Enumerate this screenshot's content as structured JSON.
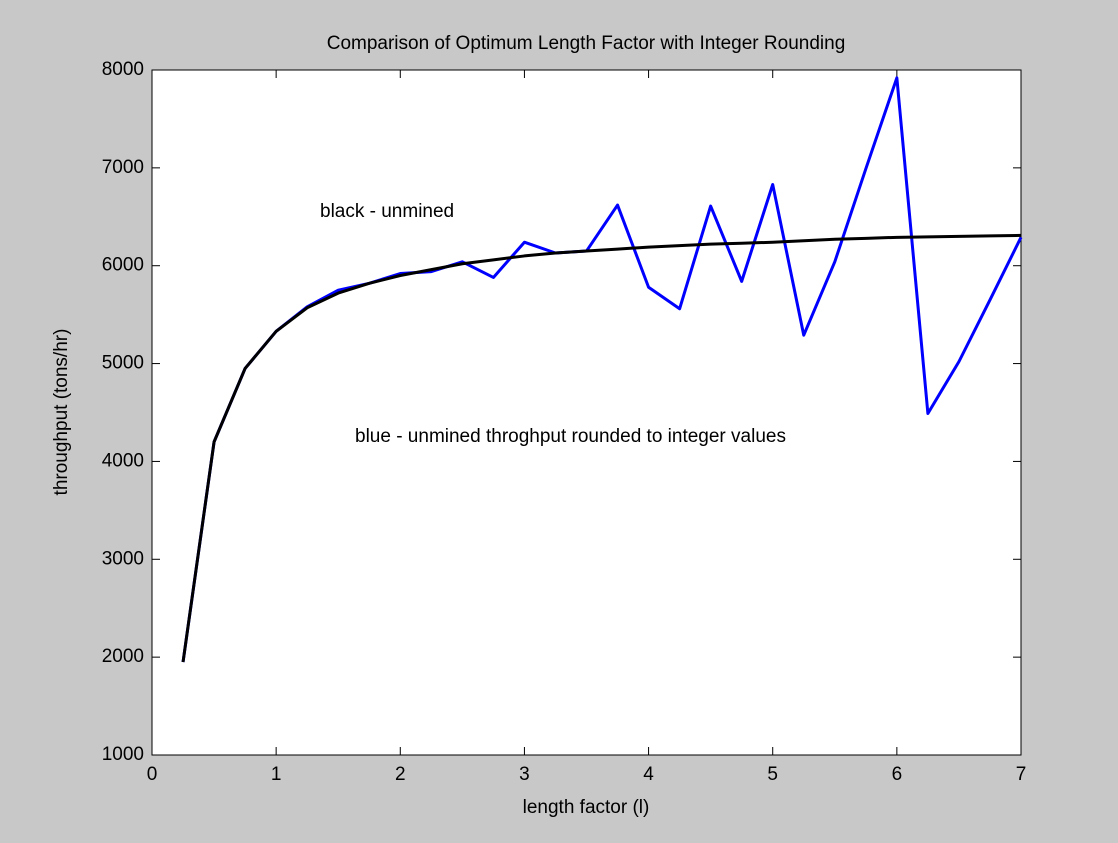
{
  "chart_data": {
    "type": "line",
    "title": "Comparison of Optimum Length Factor with Integer Rounding",
    "xlabel": "length factor (l)",
    "ylabel": "throughput (tons/hr)",
    "annotations": [
      "black - unmined",
      "blue - unmined throghput rounded to integer values"
    ],
    "x": [
      0.25,
      0.5,
      0.75,
      1,
      1.25,
      1.5,
      1.75,
      2,
      2.25,
      2.5,
      2.75,
      3,
      3.25,
      3.5,
      3.75,
      4,
      4.25,
      4.5,
      4.75,
      5,
      5.25,
      5.5,
      5.75,
      6,
      6.25,
      6.5,
      6.75,
      7
    ],
    "series": [
      {
        "name": "blue",
        "color": "#0000ff",
        "values": [
          1950,
          4200,
          4950,
          5330,
          5580,
          5750,
          5820,
          5920,
          5940,
          6040,
          5880,
          6240,
          6130,
          6150,
          6620,
          5780,
          5560,
          6610,
          5840,
          6830,
          5290,
          6040,
          6990,
          7920,
          4490,
          5020,
          5650,
          6290
        ]
      },
      {
        "name": "black",
        "color": "#000000",
        "values": [
          1950,
          4200,
          4950,
          5330,
          5570,
          5720,
          5820,
          5900,
          5960,
          6020,
          6060,
          6100,
          6130,
          6150,
          6170,
          6190,
          6205,
          6220,
          6230,
          6240,
          6255,
          6270,
          6280,
          6290,
          6295,
          6300,
          6305,
          6310
        ]
      }
    ],
    "xlim": [
      0,
      7
    ],
    "xticks": [
      0,
      1,
      2,
      3,
      4,
      5,
      6,
      7
    ],
    "ylim": [
      1000,
      8000
    ],
    "yticks": [
      1000,
      2000,
      3000,
      4000,
      5000,
      6000,
      7000,
      8000
    ],
    "grid": false
  }
}
